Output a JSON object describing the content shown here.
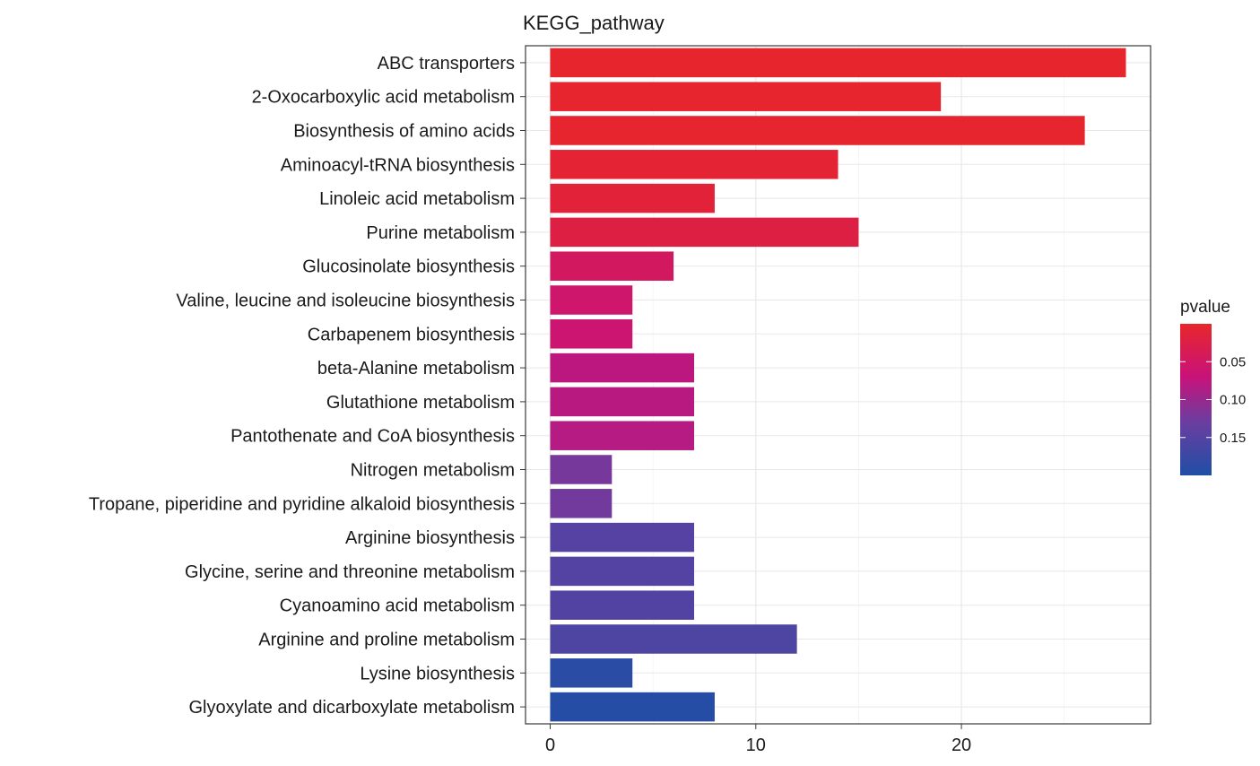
{
  "chart_data": {
    "type": "bar",
    "orientation": "horizontal",
    "title": "KEGG_pathway",
    "xlabel": "",
    "ylabel": "",
    "xlim": [
      -1.2,
      29.2
    ],
    "xticks": [
      0,
      10,
      20
    ],
    "grid": true,
    "categories": [
      "ABC transporters",
      "2-Oxocarboxylic acid metabolism",
      "Biosynthesis of amino acids",
      "Aminoacyl-tRNA biosynthesis",
      "Linoleic acid metabolism",
      "Purine metabolism",
      "Glucosinolate biosynthesis",
      "Valine, leucine and isoleucine biosynthesis",
      "Carbapenem biosynthesis",
      "beta-Alanine metabolism",
      "Glutathione metabolism",
      "Pantothenate and CoA biosynthesis",
      "Nitrogen metabolism",
      "Tropane, piperidine and pyridine alkaloid biosynthesis",
      "Arginine biosynthesis",
      "Glycine, serine and threonine metabolism",
      "Cyanoamino acid metabolism",
      "Arginine and proline metabolism",
      "Lysine biosynthesis",
      "Glyoxylate and dicarboxylate metabolism"
    ],
    "values": [
      28,
      19,
      26,
      14,
      8,
      15,
      6,
      4,
      4,
      7,
      7,
      7,
      3,
      3,
      7,
      7,
      7,
      12,
      4,
      8
    ],
    "pvalues": [
      0.002,
      0.003,
      0.004,
      0.008,
      0.012,
      0.022,
      0.045,
      0.055,
      0.058,
      0.075,
      0.078,
      0.08,
      0.125,
      0.128,
      0.152,
      0.153,
      0.155,
      0.158,
      0.19,
      0.195
    ],
    "legend": {
      "title": "pvalue",
      "position": "right",
      "ticks": [
        0.05,
        0.1,
        0.15
      ],
      "tick_labels": [
        "0.05",
        "0.10",
        "0.15"
      ],
      "range": [
        0.0,
        0.2
      ],
      "colors": [
        "#e8262a",
        "#c8127a",
        "#6a3ea0",
        "#1f4ea6"
      ]
    }
  }
}
